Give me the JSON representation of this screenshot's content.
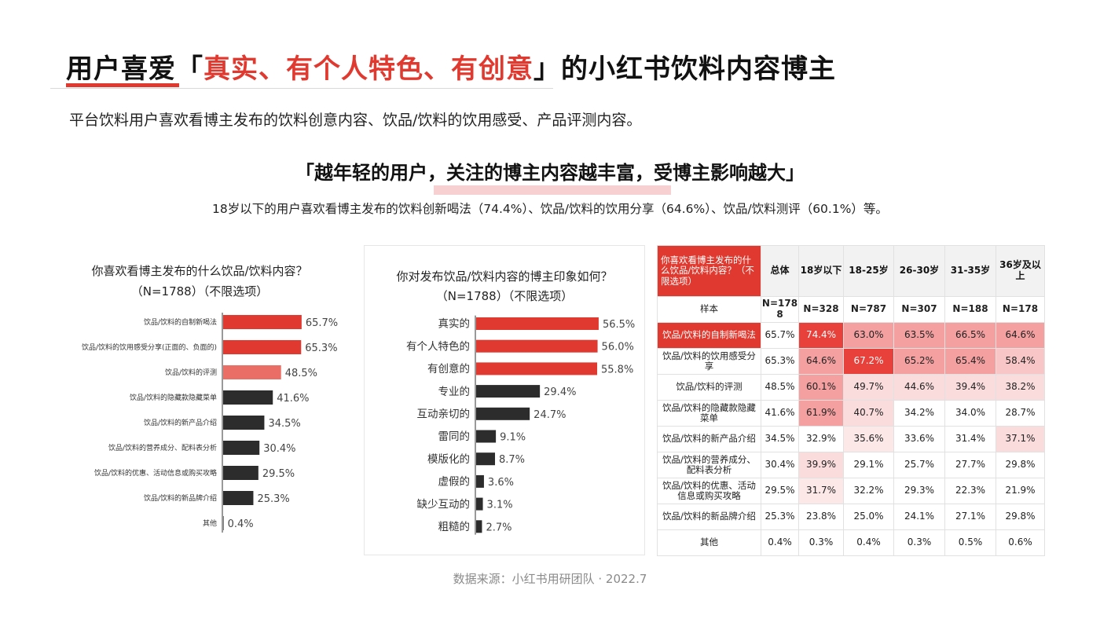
{
  "title": {
    "prefix": "用户喜爱「",
    "highlight": "真实、有个人特色、有创意",
    "suffix": "」的小红书饮料内容博主"
  },
  "subtitle": "平台饮料用户喜欢看博主发布的饮料创意内容、饮品/饮料的饮用感受、产品评测内容。",
  "headline": "「越年轻的用户，关注的博主内容越丰富，受博主影响越大」",
  "detail": "18岁以下的用户喜欢看博主发布的饮料创新喝法（74.4%）、饮品/饮料的饮用分享（64.6%）、饮品/饮料测评（60.1%）等。",
  "source": "数据来源：小红书用研团队 · 2022.7",
  "colors": {
    "red": "#e03a30",
    "light_red": "#ea6e66",
    "dark": "#2c2c2c"
  },
  "chart_data": [
    {
      "type": "bar",
      "orientation": "horizontal",
      "title_line1": "你喜欢看博主发布的什么饮品/饮料内容？",
      "title_line2": "（N=1788）（不限选项）",
      "categories": [
        "饮品/饮料的自制新喝法",
        "饮品/饮料的饮用感受分享(正面的、负面的)",
        "饮品/饮料的评测",
        "饮品/饮料的隐藏款隐藏菜单",
        "饮品/饮料的新产品介绍",
        "饮品/饮料的营养成分、配料表分析",
        "饮品/饮料的优惠、活动信息或购买攻略",
        "饮品/饮料的新品牌介绍",
        "其他"
      ],
      "values": [
        65.7,
        65.3,
        48.5,
        41.6,
        34.5,
        30.4,
        29.5,
        25.3,
        0.4
      ],
      "value_labels": [
        "65.7%",
        "65.3%",
        "48.5%",
        "41.6%",
        "34.5%",
        "30.4%",
        "29.5%",
        "25.3%",
        "0.4%"
      ],
      "bar_colors": [
        "#e03a30",
        "#e03a30",
        "#ea6e66",
        "#2c2c2c",
        "#2c2c2c",
        "#2c2c2c",
        "#2c2c2c",
        "#2c2c2c",
        "#2c2c2c"
      ],
      "xlim": [
        0,
        100
      ]
    },
    {
      "type": "bar",
      "orientation": "horizontal",
      "title_line1": "你对发布饮品/饮料内容的博主印象如何？",
      "title_line2": "（N=1788）（不限选项）",
      "categories": [
        "真实的",
        "有个人特色的",
        "有创意的",
        "专业的",
        "互动亲切的",
        "雷同的",
        "模版化的",
        "虚假的",
        "缺少互动的",
        "粗糙的"
      ],
      "values": [
        56.5,
        56.0,
        55.8,
        29.4,
        24.7,
        9.1,
        8.7,
        3.6,
        3.1,
        2.7
      ],
      "value_labels": [
        "56.5%",
        "56.0%",
        "55.8%",
        "29.4%",
        "24.7%",
        "9.1%",
        "8.7%",
        "3.6%",
        "3.1%",
        "2.7%"
      ],
      "bar_colors": [
        "#e03a30",
        "#e03a30",
        "#e03a30",
        "#2c2c2c",
        "#2c2c2c",
        "#2c2c2c",
        "#2c2c2c",
        "#2c2c2c",
        "#2c2c2c",
        "#2c2c2c"
      ],
      "xlim": [
        0,
        100
      ]
    },
    {
      "type": "table",
      "corner": "你喜欢看博主发布的什么饮品/饮料内容？（不限选项）",
      "columns": [
        "总体",
        "18岁以下",
        "18-25岁",
        "26-30岁",
        "31-35岁",
        "36岁及以上"
      ],
      "sample_label": "样本",
      "sample": [
        "N=1788",
        "N=328",
        "N=787",
        "N=307",
        "N=188",
        "N=178"
      ],
      "rows": [
        {
          "label": "饮品/饮料的自制新喝法",
          "values": [
            "65.7%",
            "74.4%",
            "63.0%",
            "63.5%",
            "66.5%",
            "64.6%"
          ]
        },
        {
          "label": "饮品/饮料的饮用感受分享",
          "values": [
            "65.3%",
            "64.6%",
            "67.2%",
            "65.2%",
            "65.4%",
            "58.4%"
          ]
        },
        {
          "label": "饮品/饮料的评测",
          "values": [
            "48.5%",
            "60.1%",
            "49.7%",
            "44.6%",
            "39.4%",
            "38.2%"
          ]
        },
        {
          "label": "饮品/饮料的隐藏款隐藏菜单",
          "values": [
            "41.6%",
            "61.9%",
            "40.7%",
            "34.2%",
            "34.0%",
            "28.7%"
          ]
        },
        {
          "label": "饮品/饮料的新产品介绍",
          "values": [
            "34.5%",
            "32.9%",
            "35.6%",
            "33.6%",
            "31.4%",
            "37.1%"
          ]
        },
        {
          "label": "饮品/饮料的营养成分、配料表分析",
          "values": [
            "30.4%",
            "39.9%",
            "29.1%",
            "25.7%",
            "27.7%",
            "29.8%"
          ]
        },
        {
          "label": "饮品/饮料的优惠、活动信息或购买攻略",
          "values": [
            "29.5%",
            "31.7%",
            "32.2%",
            "29.3%",
            "22.3%",
            "21.9%"
          ]
        },
        {
          "label": "饮品/饮料的新品牌介绍",
          "values": [
            "25.3%",
            "23.8%",
            "25.0%",
            "24.1%",
            "27.1%",
            "29.8%"
          ]
        },
        {
          "label": "其他",
          "values": [
            "0.4%",
            "0.3%",
            "0.4%",
            "0.3%",
            "0.5%",
            "0.6%"
          ]
        }
      ],
      "cell_colors": [
        [
          "#ffffff",
          "#e8403a",
          "#f4a0a0",
          "#f4a0a0",
          "#f4a0a0",
          "#f4a0a0"
        ],
        [
          "#ffffff",
          "#f4a0a0",
          "#e8403a",
          "#f4a0a0",
          "#f4a0a0",
          "#f8c6c6"
        ],
        [
          "#ffffff",
          "#f4a0a0",
          "#fbdcdc",
          "#fbdcdc",
          "#fbdcdc",
          "#fbdcdc"
        ],
        [
          "#ffffff",
          "#f4a0a0",
          "#fbdcdc",
          "#ffffff",
          "#ffffff",
          "#ffffff"
        ],
        [
          "#ffffff",
          "#ffffff",
          "#fde8e8",
          "#ffffff",
          "#ffffff",
          "#fbdcdc"
        ],
        [
          "#ffffff",
          "#fbdcdc",
          "#ffffff",
          "#ffffff",
          "#ffffff",
          "#ffffff"
        ],
        [
          "#ffffff",
          "#fde8e8",
          "#ffffff",
          "#ffffff",
          "#ffffff",
          "#ffffff"
        ],
        [
          "#ffffff",
          "#ffffff",
          "#ffffff",
          "#ffffff",
          "#ffffff",
          "#ffffff"
        ],
        [
          "#ffffff",
          "#ffffff",
          "#ffffff",
          "#ffffff",
          "#ffffff",
          "#ffffff"
        ]
      ]
    }
  ]
}
